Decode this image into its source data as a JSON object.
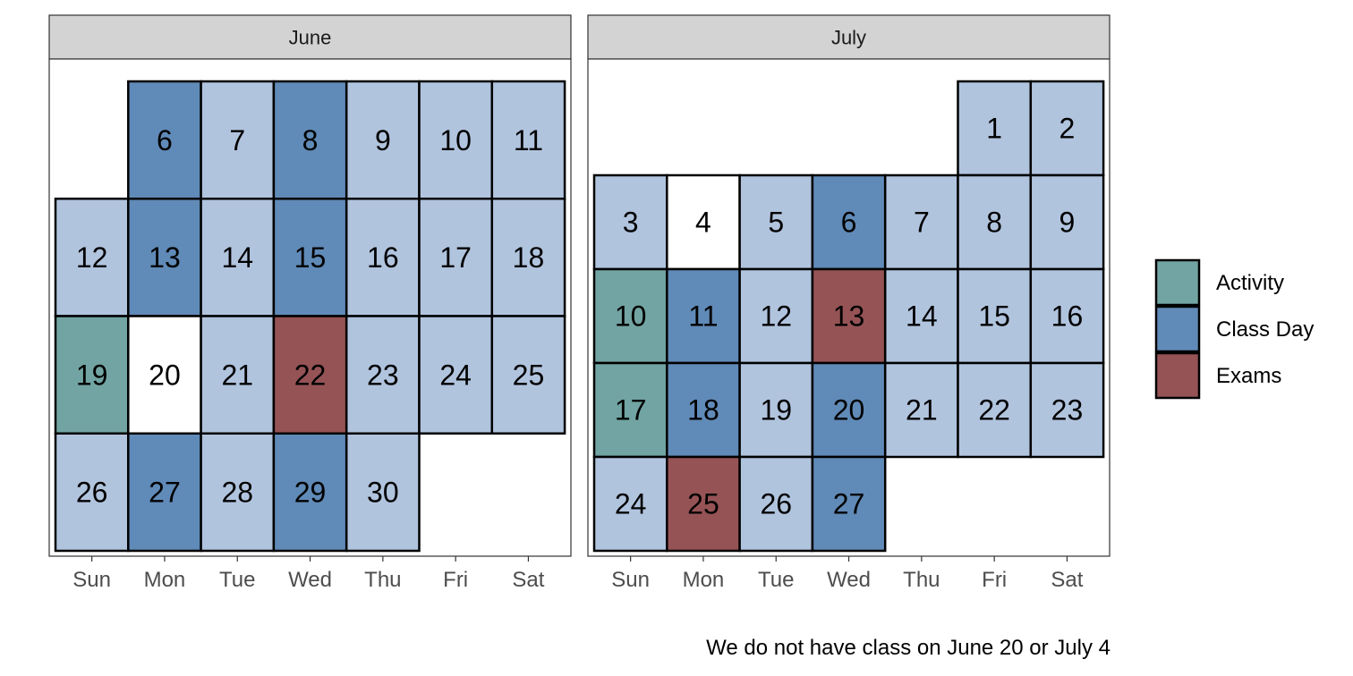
{
  "chart_data": {
    "type": "heatmap",
    "caption": "We do not have class on June 20 or July 4",
    "weekdays": [
      "Sun",
      "Mon",
      "Tue",
      "Wed",
      "Thu",
      "Fri",
      "Sat"
    ],
    "legend": {
      "position": "right",
      "items": [
        {
          "key": "activity",
          "label": "Activity",
          "color": "#71a4a2"
        },
        {
          "key": "class",
          "label": "Class Day",
          "color": "#608ab7"
        },
        {
          "key": "exam",
          "label": "Exams",
          "color": "#955355"
        }
      ]
    },
    "category_colors": {
      "activity": "#71a4a2",
      "class": "#608ab7",
      "exam": "#955355",
      "regular": "#b1c4de",
      "none": "#ffffff"
    },
    "panels": [
      {
        "name": "June",
        "days": [
          {
            "day": 6,
            "weekday": 1,
            "week": 0,
            "category": "class"
          },
          {
            "day": 7,
            "weekday": 2,
            "week": 0,
            "category": "regular"
          },
          {
            "day": 8,
            "weekday": 3,
            "week": 0,
            "category": "class"
          },
          {
            "day": 9,
            "weekday": 4,
            "week": 0,
            "category": "regular"
          },
          {
            "day": 10,
            "weekday": 5,
            "week": 0,
            "category": "regular"
          },
          {
            "day": 11,
            "weekday": 6,
            "week": 0,
            "category": "regular"
          },
          {
            "day": 12,
            "weekday": 0,
            "week": 1,
            "category": "regular"
          },
          {
            "day": 13,
            "weekday": 1,
            "week": 1,
            "category": "class"
          },
          {
            "day": 14,
            "weekday": 2,
            "week": 1,
            "category": "regular"
          },
          {
            "day": 15,
            "weekday": 3,
            "week": 1,
            "category": "class"
          },
          {
            "day": 16,
            "weekday": 4,
            "week": 1,
            "category": "regular"
          },
          {
            "day": 17,
            "weekday": 5,
            "week": 1,
            "category": "regular"
          },
          {
            "day": 18,
            "weekday": 6,
            "week": 1,
            "category": "regular"
          },
          {
            "day": 19,
            "weekday": 0,
            "week": 2,
            "category": "activity"
          },
          {
            "day": 20,
            "weekday": 1,
            "week": 2,
            "category": "none"
          },
          {
            "day": 21,
            "weekday": 2,
            "week": 2,
            "category": "regular"
          },
          {
            "day": 22,
            "weekday": 3,
            "week": 2,
            "category": "exam"
          },
          {
            "day": 23,
            "weekday": 4,
            "week": 2,
            "category": "regular"
          },
          {
            "day": 24,
            "weekday": 5,
            "week": 2,
            "category": "regular"
          },
          {
            "day": 25,
            "weekday": 6,
            "week": 2,
            "category": "regular"
          },
          {
            "day": 26,
            "weekday": 0,
            "week": 3,
            "category": "regular"
          },
          {
            "day": 27,
            "weekday": 1,
            "week": 3,
            "category": "class"
          },
          {
            "day": 28,
            "weekday": 2,
            "week": 3,
            "category": "regular"
          },
          {
            "day": 29,
            "weekday": 3,
            "week": 3,
            "category": "class"
          },
          {
            "day": 30,
            "weekday": 4,
            "week": 3,
            "category": "regular"
          }
        ]
      },
      {
        "name": "July",
        "days": [
          {
            "day": 1,
            "weekday": 5,
            "week": 0,
            "category": "regular"
          },
          {
            "day": 2,
            "weekday": 6,
            "week": 0,
            "category": "regular"
          },
          {
            "day": 3,
            "weekday": 0,
            "week": 1,
            "category": "regular"
          },
          {
            "day": 4,
            "weekday": 1,
            "week": 1,
            "category": "none"
          },
          {
            "day": 5,
            "weekday": 2,
            "week": 1,
            "category": "regular"
          },
          {
            "day": 6,
            "weekday": 3,
            "week": 1,
            "category": "class"
          },
          {
            "day": 7,
            "weekday": 4,
            "week": 1,
            "category": "regular"
          },
          {
            "day": 8,
            "weekday": 5,
            "week": 1,
            "category": "regular"
          },
          {
            "day": 9,
            "weekday": 6,
            "week": 1,
            "category": "regular"
          },
          {
            "day": 10,
            "weekday": 0,
            "week": 2,
            "category": "activity"
          },
          {
            "day": 11,
            "weekday": 1,
            "week": 2,
            "category": "class"
          },
          {
            "day": 12,
            "weekday": 2,
            "week": 2,
            "category": "regular"
          },
          {
            "day": 13,
            "weekday": 3,
            "week": 2,
            "category": "exam"
          },
          {
            "day": 14,
            "weekday": 4,
            "week": 2,
            "category": "regular"
          },
          {
            "day": 15,
            "weekday": 5,
            "week": 2,
            "category": "regular"
          },
          {
            "day": 16,
            "weekday": 6,
            "week": 2,
            "category": "regular"
          },
          {
            "day": 17,
            "weekday": 0,
            "week": 3,
            "category": "activity"
          },
          {
            "day": 18,
            "weekday": 1,
            "week": 3,
            "category": "class"
          },
          {
            "day": 19,
            "weekday": 2,
            "week": 3,
            "category": "regular"
          },
          {
            "day": 20,
            "weekday": 3,
            "week": 3,
            "category": "class"
          },
          {
            "day": 21,
            "weekday": 4,
            "week": 3,
            "category": "regular"
          },
          {
            "day": 22,
            "weekday": 5,
            "week": 3,
            "category": "regular"
          },
          {
            "day": 23,
            "weekday": 6,
            "week": 3,
            "category": "regular"
          },
          {
            "day": 24,
            "weekday": 0,
            "week": 4,
            "category": "regular"
          },
          {
            "day": 25,
            "weekday": 1,
            "week": 4,
            "category": "exam"
          },
          {
            "day": 26,
            "weekday": 2,
            "week": 4,
            "category": "regular"
          },
          {
            "day": 27,
            "weekday": 3,
            "week": 4,
            "category": "class"
          }
        ]
      }
    ]
  }
}
